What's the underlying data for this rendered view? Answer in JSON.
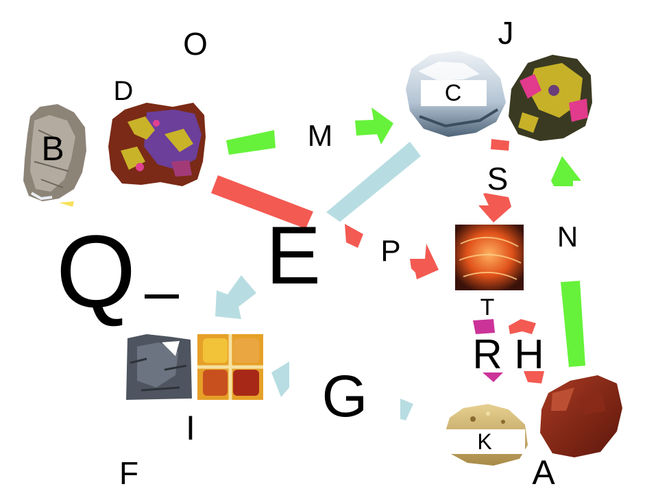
{
  "labels": {
    "O": "O",
    "J": "J",
    "D": "D",
    "C": "C",
    "M": "M",
    "B": "B",
    "S": "S",
    "N": "N",
    "Q": "Q",
    "dash": "–",
    "E": "E",
    "P": "P",
    "T": "T",
    "R": "R",
    "H": "H",
    "G": "G",
    "I": "I",
    "K": "K",
    "F": "F",
    "A": "A"
  },
  "colors": {
    "red": "#f35a52",
    "green": "#66f23a",
    "light_blue": "#b7dde2",
    "magenta": "#cc3399",
    "yellow": "#f6e15a"
  },
  "images": {
    "B": "gray-rock-icon",
    "D": "purple-yellow-mineral-icon",
    "C": "white-crystal-icon",
    "J": "yellow-pink-mineral-icon",
    "T": "glowing-orange-mineral-icon",
    "I_left": "dark-gray-rock-icon",
    "I_right": "pigment-tray-icon",
    "K": "tan-sandstone-icon",
    "A": "red-jasper-icon"
  }
}
